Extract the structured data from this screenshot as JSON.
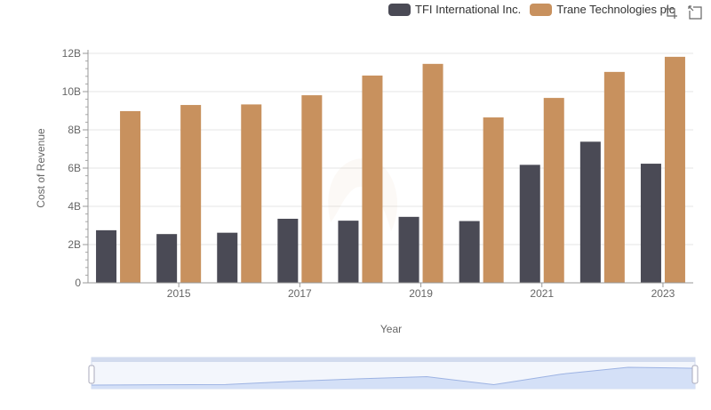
{
  "chart_data": {
    "type": "bar",
    "xlabel": "Year",
    "ylabel": "Cost of Revenue",
    "categories": [
      "2014",
      "2015",
      "2016",
      "2017",
      "2018",
      "2019",
      "2020",
      "2021",
      "2022",
      "2023"
    ],
    "x_tick_labels": [
      "2015",
      "2017",
      "2019",
      "2021",
      "2023"
    ],
    "y_tick_labels": [
      "0",
      "2B",
      "4B",
      "6B",
      "8B",
      "10B",
      "12B"
    ],
    "ylim": [
      0,
      12000000000
    ],
    "grid": true,
    "legend_position": "top-right",
    "series": [
      {
        "name": "TFI International Inc.",
        "color": "#4a4a55",
        "values": [
          2750000000,
          2550000000,
          2620000000,
          3350000000,
          3250000000,
          3450000000,
          3230000000,
          6170000000,
          7380000000,
          6230000000
        ]
      },
      {
        "name": "Trane Technologies plc",
        "color": "#c8915e",
        "values": [
          8980000000,
          9300000000,
          9330000000,
          9810000000,
          10840000000,
          11450000000,
          8650000000,
          9670000000,
          11030000000,
          11820000000
        ]
      }
    ]
  },
  "toolbar": {
    "zoom_icon": "zoom-select-icon",
    "restore_icon": "restore-icon"
  },
  "data_zoom": {
    "start_percent": 0,
    "end_percent": 100
  }
}
